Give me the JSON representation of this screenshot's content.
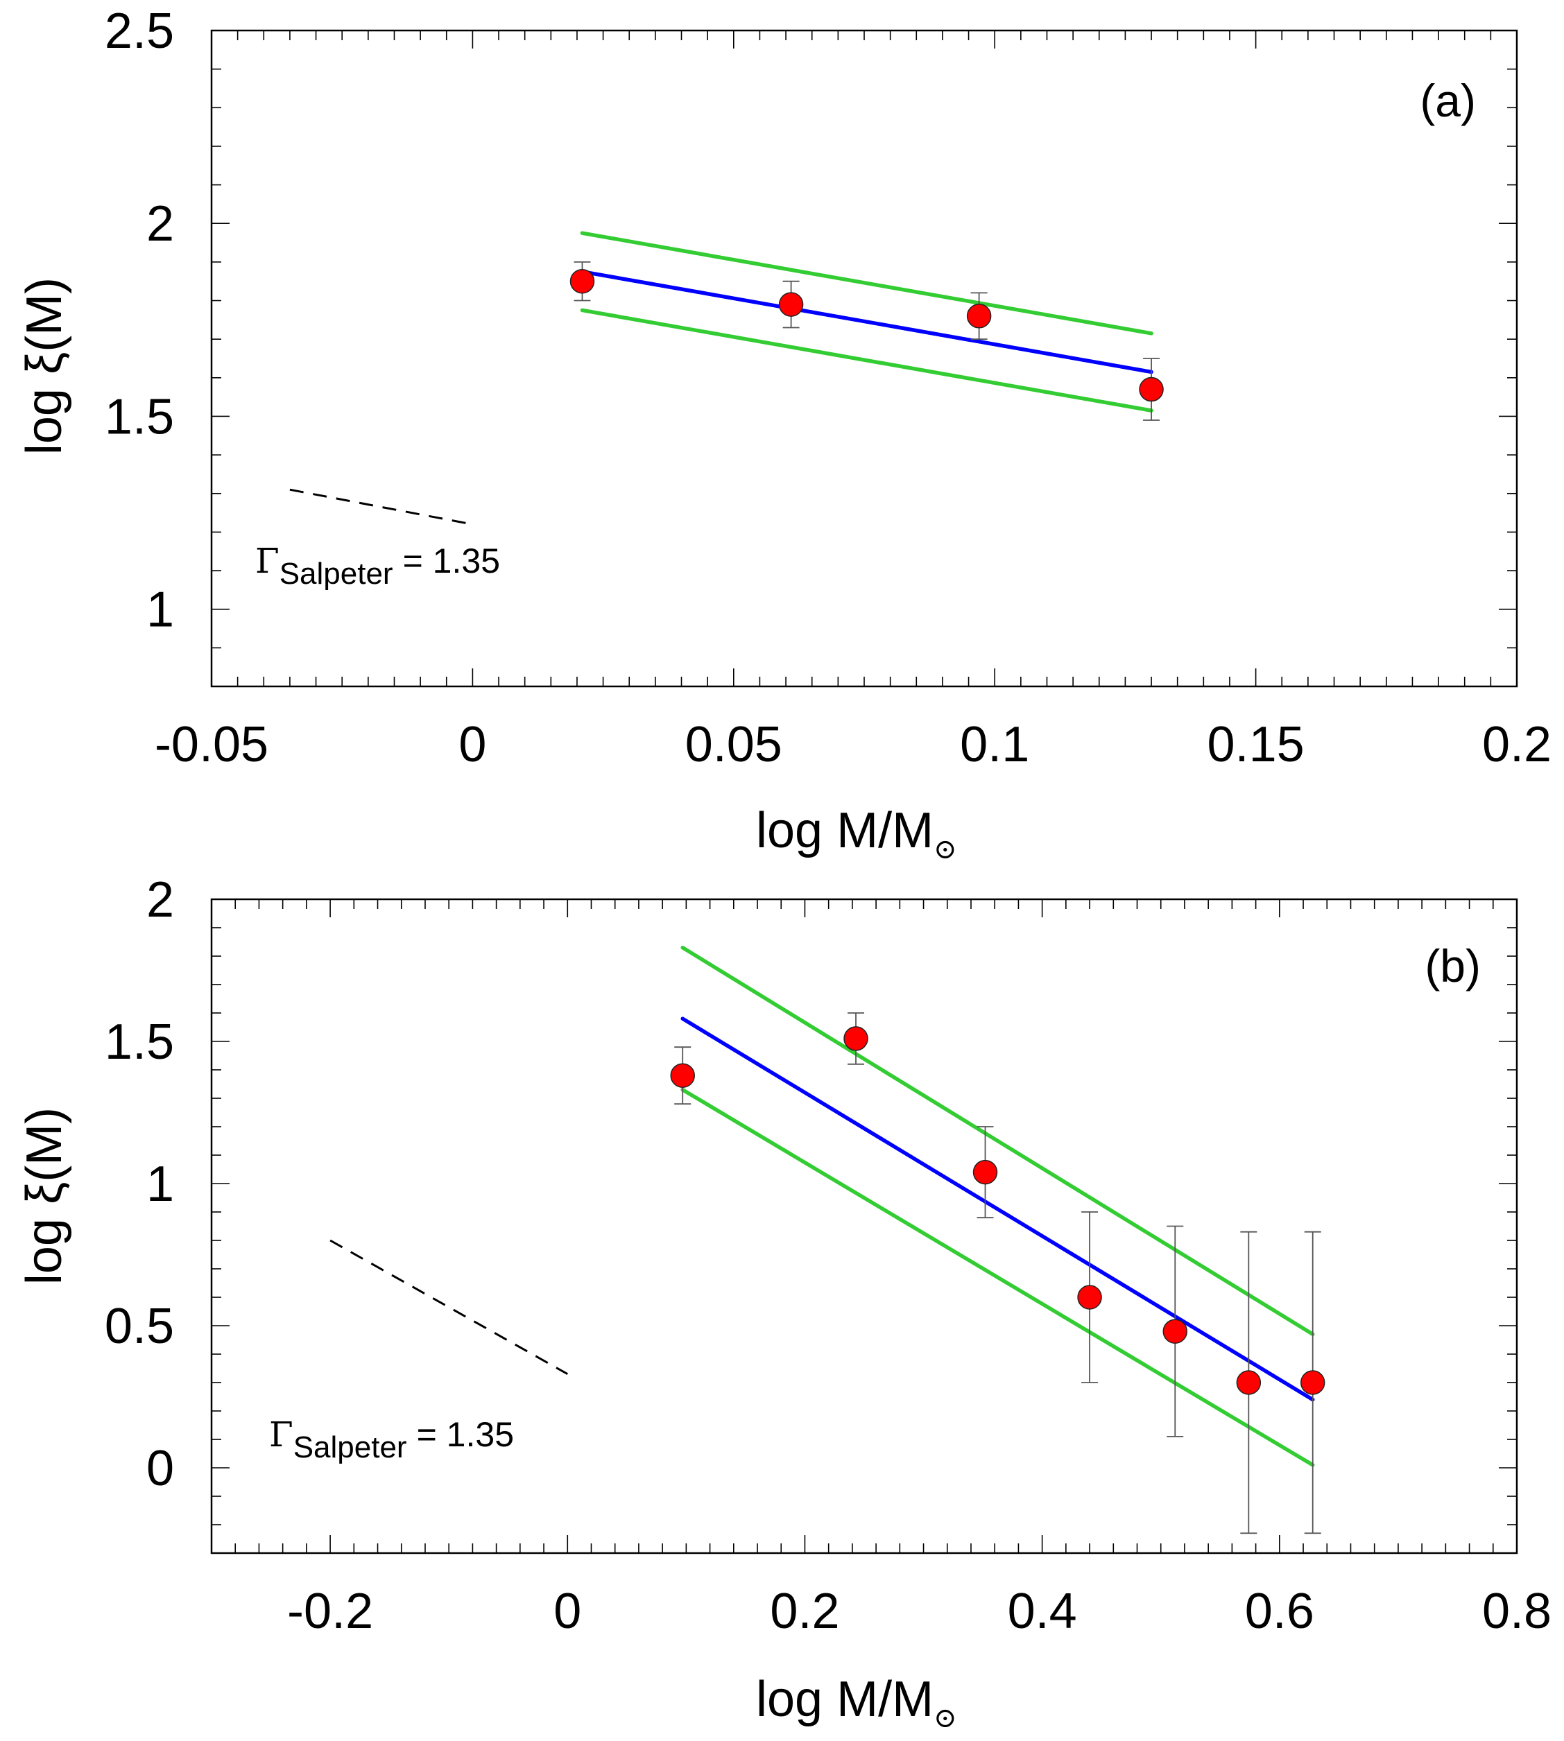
{
  "chart_data": [
    {
      "panel_label": "(a)",
      "type": "scatter",
      "xlabel": "log M/M",
      "xlabel_sub": "⊙",
      "ylabel": "log ξ(M)",
      "xlim": [
        -0.05,
        0.2
      ],
      "ylim": [
        0.8,
        2.5
      ],
      "x_ticks": [
        -0.05,
        0,
        0.05,
        0.1,
        0.15,
        0.2
      ],
      "x_tick_labels": [
        "-0.05",
        "0",
        "0.05",
        "0.1",
        "0.15",
        "0.2"
      ],
      "y_ticks": [
        1,
        1.5,
        2,
        2.5
      ],
      "y_tick_labels": [
        "1",
        "1.5",
        "2",
        "2.5"
      ],
      "points": [
        {
          "x": 0.021,
          "y": 1.85,
          "err": 0.05
        },
        {
          "x": 0.061,
          "y": 1.79,
          "err": 0.06
        },
        {
          "x": 0.097,
          "y": 1.76,
          "err": 0.06
        },
        {
          "x": 0.13,
          "y": 1.57,
          "err": 0.08
        }
      ],
      "fit_lines": [
        {
          "name": "fit",
          "color": "#0000ff",
          "x": [
            0.021,
            0.13
          ],
          "y": [
            1.875,
            1.615
          ]
        },
        {
          "name": "upper bound",
          "color": "#33cc33",
          "x": [
            0.021,
            0.13
          ],
          "y": [
            1.975,
            1.715
          ]
        },
        {
          "name": "lower bound",
          "color": "#33cc33",
          "x": [
            0.021,
            0.13
          ],
          "y": [
            1.775,
            1.515
          ]
        }
      ],
      "reference_line": {
        "name": "Salpeter slope",
        "x": [
          -0.035,
          0.0
        ],
        "y": [
          1.31,
          1.22
        ]
      },
      "annotation": {
        "symbol": "Γ",
        "subscript": "Salpeter",
        "rest": "= 1.35"
      }
    },
    {
      "panel_label": "(b)",
      "type": "scatter",
      "xlabel": "log M/M",
      "xlabel_sub": "⊙",
      "ylabel": "log ξ(M)",
      "xlim": [
        -0.3,
        0.8
      ],
      "ylim": [
        -0.3,
        2.0
      ],
      "x_ticks": [
        -0.2,
        0,
        0.2,
        0.4,
        0.6,
        0.8
      ],
      "x_tick_labels": [
        "-0.2",
        "0",
        "0.2",
        "0.4",
        "0.6",
        "0.8"
      ],
      "y_ticks": [
        0,
        0.5,
        1,
        1.5,
        2
      ],
      "y_tick_labels": [
        "0",
        "0.5",
        "1",
        "1.5",
        "2"
      ],
      "points": [
        {
          "x": 0.097,
          "y": 1.38,
          "err": 0.1
        },
        {
          "x": 0.243,
          "y": 1.51,
          "err": 0.09
        },
        {
          "x": 0.352,
          "y": 1.04,
          "err": 0.16
        },
        {
          "x": 0.44,
          "y": 0.6,
          "err": 0.3
        },
        {
          "x": 0.512,
          "y": 0.48,
          "err": 0.37
        },
        {
          "x": 0.574,
          "y": 0.3,
          "err": 0.53
        },
        {
          "x": 0.628,
          "y": 0.3,
          "err": 0.53
        }
      ],
      "fit_lines": [
        {
          "name": "fit",
          "color": "#0000ff",
          "x": [
            0.097,
            0.628
          ],
          "y": [
            1.58,
            0.24
          ]
        },
        {
          "name": "upper bound",
          "color": "#33cc33",
          "x": [
            0.097,
            0.628
          ],
          "y": [
            1.83,
            0.47
          ]
        },
        {
          "name": "lower bound",
          "color": "#33cc33",
          "x": [
            0.097,
            0.628
          ],
          "y": [
            1.33,
            0.01
          ]
        }
      ],
      "reference_line": {
        "name": "Salpeter slope",
        "x": [
          -0.2,
          0.0
        ],
        "y": [
          0.8,
          0.33
        ]
      },
      "annotation": {
        "symbol": "Γ",
        "subscript": "Salpeter",
        "rest": "= 1.35"
      }
    }
  ]
}
